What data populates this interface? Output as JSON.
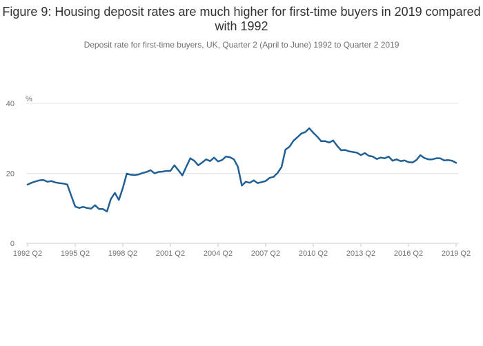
{
  "chart_data": {
    "type": "line",
    "title": "Figure 9: Housing deposit rates are much higher for first-time buyers in 2019 compared with 1992",
    "subtitle": "Deposit rate for first-time buyers, UK, Quarter 2 (April to June) 1992 to Quarter 2 2019",
    "ylabel": "%",
    "xlabel": "",
    "ylim": [
      0,
      40
    ],
    "yticks": [
      0,
      20,
      40
    ],
    "xtick_labels": [
      "1992 Q2",
      "1995 Q2",
      "1998 Q2",
      "2001 Q2",
      "2004 Q2",
      "2007 Q2",
      "2010 Q2",
      "2013 Q2",
      "2016 Q2",
      "2019 Q2"
    ],
    "grid": true,
    "legend": "none",
    "line_color": "#206095",
    "series": [
      {
        "values": [
          16.8,
          17.3,
          17.7,
          18.0,
          18.1,
          17.6,
          17.8,
          17.4,
          17.2,
          17.1,
          16.8,
          13.6,
          10.5,
          10.1,
          10.4,
          10.1,
          9.9,
          10.9,
          9.8,
          9.8,
          9.1,
          12.7,
          14.4,
          12.4,
          15.8,
          19.9,
          19.6,
          19.5,
          19.7,
          20.1,
          20.4,
          20.9,
          20.0,
          20.4,
          20.5,
          20.7,
          20.7,
          22.3,
          20.9,
          19.4,
          21.9,
          24.3,
          23.6,
          22.3,
          23.1,
          24.0,
          23.5,
          24.5,
          23.4,
          23.8,
          24.8,
          24.6,
          24.0,
          21.9,
          16.5,
          17.6,
          17.3,
          18.0,
          17.2,
          17.5,
          17.8,
          18.7,
          19.0,
          20.1,
          21.8,
          26.8,
          27.6,
          29.3,
          30.3,
          31.4,
          31.8,
          32.9,
          31.6,
          30.5,
          29.2,
          29.2,
          28.8,
          29.4,
          27.9,
          26.6,
          26.7,
          26.3,
          26.1,
          25.9,
          25.2,
          25.8,
          25.0,
          24.8,
          24.1,
          24.5,
          24.3,
          24.8,
          23.6,
          24.0,
          23.5,
          23.7,
          23.2,
          23.1,
          23.8,
          25.2,
          24.4,
          24.0,
          24.0,
          24.3,
          24.3,
          23.7,
          23.8,
          23.6,
          23.0
        ]
      }
    ]
  }
}
